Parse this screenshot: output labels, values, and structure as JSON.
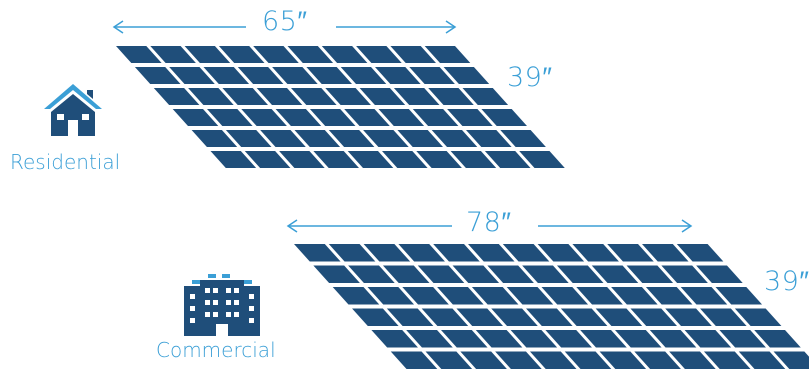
{
  "residential": {
    "width_label": "65″",
    "height_label": "39″",
    "category_label": "Residential",
    "icon": "house-icon"
  },
  "commercial": {
    "width_label": "78″",
    "height_label": "39″",
    "category_label": "Commercial",
    "icon": "office-building-icon"
  },
  "colors": {
    "accent": "#3b9fd6",
    "panel_cell": "#1f4e7a",
    "icon_fill": "#1f4e7a"
  }
}
